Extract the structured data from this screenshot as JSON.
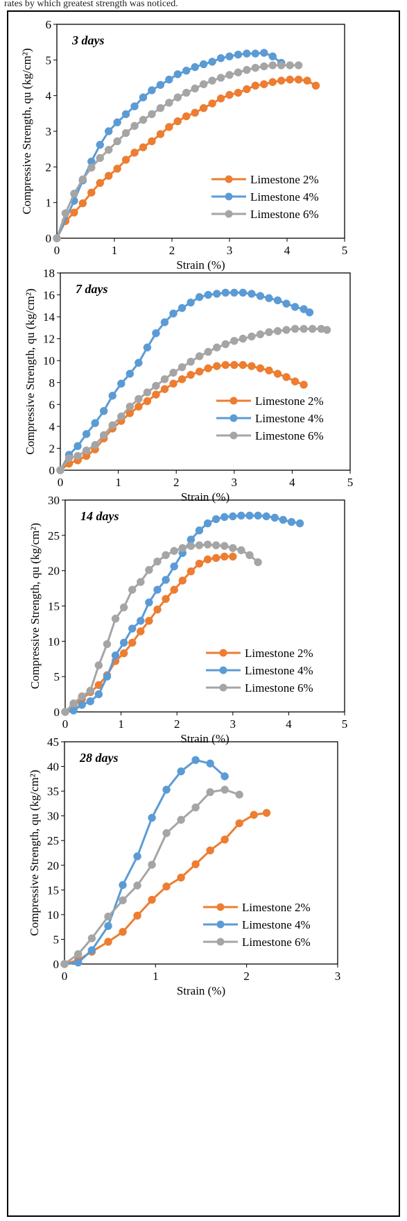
{
  "caption": "rates by which greatest strength was noticed.",
  "chart_data": [
    {
      "type": "line",
      "title": "3 days",
      "xlabel": "Strain (%)",
      "ylabel": "Compressive Strength, qu (kg/cm²)",
      "xlim": [
        0,
        5
      ],
      "ylim": [
        0,
        6
      ],
      "xticks": [
        0,
        1,
        2,
        3,
        4,
        5
      ],
      "yticks": [
        0,
        1,
        2,
        3,
        4,
        5,
        6
      ],
      "xtick_labels": [
        "0",
        "1",
        "2",
        "3",
        "4",
        "5"
      ],
      "ytick_labels": [
        "0",
        "1",
        "2",
        "3",
        "4",
        "5",
        "6"
      ],
      "grid": false,
      "legend": "right",
      "series": [
        {
          "name": "Limestone 2%",
          "color": "#ED7D31",
          "x": [
            0,
            0.15,
            0.3,
            0.45,
            0.6,
            0.75,
            0.9,
            1.05,
            1.2,
            1.35,
            1.5,
            1.65,
            1.8,
            1.95,
            2.1,
            2.25,
            2.4,
            2.55,
            2.7,
            2.85,
            3.0,
            3.15,
            3.3,
            3.45,
            3.6,
            3.75,
            3.9,
            4.05,
            4.2,
            4.35,
            4.5
          ],
          "y": [
            0,
            0.48,
            0.72,
            0.98,
            1.28,
            1.55,
            1.75,
            1.95,
            2.2,
            2.4,
            2.55,
            2.72,
            2.92,
            3.12,
            3.28,
            3.42,
            3.52,
            3.65,
            3.78,
            3.92,
            4.02,
            4.08,
            4.18,
            4.28,
            4.32,
            4.38,
            4.42,
            4.45,
            4.45,
            4.42,
            4.28
          ]
        },
        {
          "name": "Limestone 4%",
          "color": "#5B9BD5",
          "x": [
            0,
            0.3,
            0.45,
            0.6,
            0.75,
            0.9,
            1.05,
            1.2,
            1.35,
            1.5,
            1.65,
            1.8,
            1.95,
            2.1,
            2.25,
            2.4,
            2.55,
            2.7,
            2.85,
            3.0,
            3.15,
            3.3,
            3.45,
            3.6,
            3.75,
            3.9
          ],
          "y": [
            0,
            1.05,
            1.62,
            2.15,
            2.62,
            3.0,
            3.25,
            3.48,
            3.7,
            3.95,
            4.15,
            4.3,
            4.45,
            4.6,
            4.7,
            4.8,
            4.88,
            4.95,
            5.05,
            5.1,
            5.15,
            5.18,
            5.18,
            5.2,
            5.1,
            4.92
          ]
        },
        {
          "name": "Limestone 6%",
          "color": "#A5A5A5",
          "x": [
            0,
            0.15,
            0.3,
            0.45,
            0.6,
            0.75,
            0.9,
            1.05,
            1.2,
            1.35,
            1.5,
            1.65,
            1.8,
            1.95,
            2.1,
            2.25,
            2.4,
            2.55,
            2.7,
            2.85,
            3.0,
            3.15,
            3.3,
            3.45,
            3.6,
            3.75,
            3.9,
            4.05,
            4.2
          ],
          "y": [
            0,
            0.7,
            1.25,
            1.65,
            1.98,
            2.25,
            2.48,
            2.72,
            2.95,
            3.15,
            3.32,
            3.48,
            3.65,
            3.8,
            3.95,
            4.08,
            4.2,
            4.32,
            4.42,
            4.5,
            4.58,
            4.65,
            4.72,
            4.78,
            4.82,
            4.85,
            4.85,
            4.85,
            4.85
          ]
        }
      ]
    },
    {
      "type": "line",
      "title": "7 days",
      "xlabel": "Strain (%)",
      "ylabel": "Compressive Strength, qu (kg/cm²)",
      "xlim": [
        0,
        5
      ],
      "ylim": [
        0,
        18
      ],
      "xticks": [
        0,
        1,
        2,
        3,
        4,
        5
      ],
      "yticks": [
        0,
        2,
        4,
        6,
        8,
        10,
        12,
        14,
        16,
        18
      ],
      "xtick_labels": [
        "0",
        "1",
        "2",
        "3",
        "4",
        "5"
      ],
      "ytick_labels": [
        "0",
        "2",
        "4",
        "6",
        "8",
        "10",
        "12",
        "14",
        "16",
        "18"
      ],
      "grid": false,
      "legend": "bottom-right",
      "series": [
        {
          "name": "Limestone 2%",
          "color": "#ED7D31",
          "x": [
            0,
            0.15,
            0.3,
            0.45,
            0.6,
            0.75,
            0.9,
            1.05,
            1.2,
            1.35,
            1.5,
            1.65,
            1.8,
            1.95,
            2.1,
            2.25,
            2.4,
            2.55,
            2.7,
            2.85,
            3.0,
            3.15,
            3.3,
            3.45,
            3.6,
            3.75,
            3.9,
            4.05,
            4.2
          ],
          "y": [
            0,
            0.6,
            0.9,
            1.3,
            1.9,
            2.9,
            3.8,
            4.5,
            5.2,
            5.8,
            6.3,
            6.9,
            7.4,
            7.9,
            8.3,
            8.7,
            9.0,
            9.3,
            9.5,
            9.6,
            9.6,
            9.6,
            9.5,
            9.3,
            9.1,
            8.8,
            8.5,
            8.1,
            7.8
          ]
        },
        {
          "name": "Limestone 4%",
          "color": "#5B9BD5",
          "x": [
            0,
            0.15,
            0.3,
            0.45,
            0.6,
            0.75,
            0.9,
            1.05,
            1.2,
            1.35,
            1.5,
            1.65,
            1.8,
            1.95,
            2.1,
            2.25,
            2.4,
            2.55,
            2.7,
            2.85,
            3.0,
            3.15,
            3.3,
            3.45,
            3.6,
            3.75,
            3.9,
            4.05,
            4.2,
            4.3
          ],
          "y": [
            0,
            1.4,
            2.2,
            3.3,
            4.3,
            5.4,
            6.8,
            7.9,
            8.8,
            9.8,
            11.2,
            12.5,
            13.5,
            14.3,
            14.8,
            15.3,
            15.8,
            16.0,
            16.1,
            16.2,
            16.2,
            16.2,
            16.1,
            15.9,
            15.7,
            15.5,
            15.2,
            14.9,
            14.7,
            14.4
          ]
        },
        {
          "name": "Limestone 6%",
          "color": "#A5A5A5",
          "x": [
            0,
            0.15,
            0.3,
            0.45,
            0.6,
            0.75,
            0.9,
            1.05,
            1.2,
            1.35,
            1.5,
            1.65,
            1.8,
            1.95,
            2.1,
            2.25,
            2.4,
            2.55,
            2.7,
            2.85,
            3.0,
            3.15,
            3.3,
            3.45,
            3.6,
            3.75,
            3.9,
            4.05,
            4.2,
            4.35,
            4.5,
            4.6
          ],
          "y": [
            0,
            1.1,
            1.3,
            1.8,
            2.3,
            3.2,
            4.1,
            4.9,
            5.8,
            6.5,
            7.1,
            7.7,
            8.3,
            8.9,
            9.4,
            9.9,
            10.4,
            10.8,
            11.2,
            11.5,
            11.8,
            12.0,
            12.2,
            12.4,
            12.6,
            12.7,
            12.8,
            12.9,
            12.9,
            12.9,
            12.9,
            12.8
          ]
        }
      ]
    },
    {
      "type": "line",
      "title": "14 days",
      "xlabel": "Strain (%)",
      "ylabel": "Compressive Strength, qu (kg/cm²)",
      "xlim": [
        0,
        5
      ],
      "ylim": [
        0,
        30
      ],
      "xticks": [
        0,
        1,
        2,
        3,
        4,
        5
      ],
      "yticks": [
        0,
        5,
        10,
        15,
        20,
        25,
        30
      ],
      "xtick_labels": [
        "0",
        "1",
        "2",
        "3",
        "4",
        "5"
      ],
      "ytick_labels": [
        "0",
        "5",
        "10",
        "15",
        "20",
        "25",
        "30"
      ],
      "grid": false,
      "legend": "bottom-right",
      "series": [
        {
          "name": "Limestone 2%",
          "color": "#ED7D31",
          "x": [
            0,
            0.15,
            0.3,
            0.45,
            0.6,
            0.75,
            0.9,
            1.05,
            1.2,
            1.35,
            1.5,
            1.65,
            1.8,
            1.95,
            2.1,
            2.25,
            2.4,
            2.55,
            2.7,
            2.85,
            3.0
          ],
          "y": [
            0,
            0.9,
            1.8,
            2.8,
            3.8,
            5.2,
            7.2,
            8.3,
            9.8,
            11.4,
            12.9,
            14.5,
            16.0,
            17.3,
            18.6,
            19.9,
            21.0,
            21.6,
            21.8,
            22.0,
            22.0
          ]
        },
        {
          "name": "Limestone 4%",
          "color": "#5B9BD5",
          "x": [
            0,
            0.15,
            0.3,
            0.45,
            0.6,
            0.75,
            0.9,
            1.05,
            1.2,
            1.35,
            1.5,
            1.65,
            1.8,
            1.95,
            2.1,
            2.25,
            2.4,
            2.55,
            2.7,
            2.85,
            3.0,
            3.15,
            3.3,
            3.45,
            3.6,
            3.75,
            3.9,
            4.05,
            4.2
          ],
          "y": [
            0,
            0.2,
            1.0,
            1.5,
            2.5,
            5.0,
            8.0,
            9.8,
            11.8,
            12.9,
            15.5,
            17.3,
            18.7,
            20.6,
            22.5,
            24.4,
            25.7,
            26.7,
            27.3,
            27.6,
            27.7,
            27.8,
            27.8,
            27.8,
            27.7,
            27.5,
            27.2,
            26.9,
            26.7
          ]
        },
        {
          "name": "Limestone 6%",
          "color": "#A5A5A5",
          "x": [
            0,
            0.15,
            0.3,
            0.45,
            0.6,
            0.75,
            0.9,
            1.05,
            1.2,
            1.35,
            1.5,
            1.65,
            1.8,
            1.95,
            2.1,
            2.25,
            2.4,
            2.55,
            2.7,
            2.85,
            3.0,
            3.15,
            3.3,
            3.45
          ],
          "y": [
            0,
            1.2,
            2.2,
            3.0,
            6.6,
            9.6,
            13.2,
            14.8,
            17.3,
            18.4,
            20.1,
            21.3,
            22.2,
            22.8,
            23.2,
            23.5,
            23.6,
            23.7,
            23.6,
            23.5,
            23.2,
            22.9,
            22.2,
            21.2
          ]
        }
      ]
    },
    {
      "type": "line",
      "title": "28 days",
      "xlabel": "Strain (%)",
      "ylabel": "Compressive Strength, qu (kg/cm²)",
      "xlim": [
        0,
        3
      ],
      "ylim": [
        0,
        45
      ],
      "xticks": [
        0,
        1,
        2,
        3
      ],
      "yticks": [
        0,
        5,
        10,
        15,
        20,
        25,
        30,
        35,
        40,
        45
      ],
      "xtick_labels": [
        "0",
        "1",
        "2",
        "3"
      ],
      "ytick_labels": [
        "0",
        "5",
        "10",
        "15",
        "20",
        "25",
        "30",
        "35",
        "40",
        "45"
      ],
      "grid": false,
      "legend": "bottom-right",
      "series": [
        {
          "name": "Limestone 2%",
          "color": "#ED7D31",
          "x": [
            0,
            0.15,
            0.3,
            0.48,
            0.64,
            0.8,
            0.96,
            1.12,
            1.28,
            1.44,
            1.6,
            1.76,
            1.92,
            2.08,
            2.22
          ],
          "y": [
            0,
            0.8,
            2.5,
            4.5,
            6.5,
            9.8,
            13.0,
            15.7,
            17.5,
            20.2,
            23.0,
            25.2,
            28.5,
            30.2,
            30.6
          ]
        },
        {
          "name": "Limestone 4%",
          "color": "#5B9BD5",
          "x": [
            0,
            0.15,
            0.3,
            0.48,
            0.64,
            0.8,
            0.96,
            1.12,
            1.28,
            1.44,
            1.6,
            1.76
          ],
          "y": [
            0,
            0.3,
            2.8,
            7.7,
            16.0,
            21.8,
            29.6,
            35.3,
            39.0,
            41.3,
            40.6,
            38.0
          ]
        },
        {
          "name": "Limestone 6%",
          "color": "#A5A5A5",
          "x": [
            0,
            0.15,
            0.3,
            0.48,
            0.64,
            0.8,
            0.96,
            1.12,
            1.28,
            1.44,
            1.6,
            1.76,
            1.92
          ],
          "y": [
            0,
            2.0,
            5.2,
            9.6,
            12.9,
            15.9,
            20.1,
            26.5,
            29.2,
            31.7,
            34.8,
            35.3,
            34.3
          ]
        }
      ]
    }
  ]
}
